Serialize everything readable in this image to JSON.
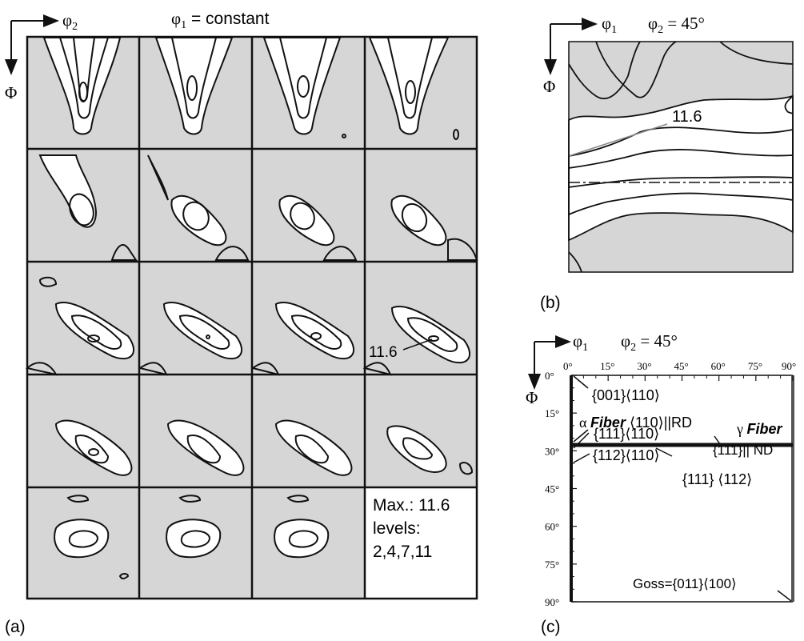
{
  "panel_a": {
    "label": "(a)",
    "axis_phi2": "φ",
    "axis_phi2_sub": "2",
    "axis_Phi": "Φ",
    "title_phi1": "φ",
    "title_phi1_sub": "1",
    "title_rest": " = constant",
    "peak_label": "11.6",
    "legend_max": "Max.: 11.6",
    "legend_levels": "levels:",
    "legend_values": "2,4,7,11"
  },
  "panel_b": {
    "label": "(b)",
    "axis_phi1": "φ",
    "axis_phi1_sub": "1",
    "axis_Phi": "Φ",
    "title_phi2": "φ",
    "title_phi2_sub": "2",
    "title_rest": " = 45°",
    "peak_label": "11.6"
  },
  "panel_c": {
    "label": "(c)",
    "axis_phi1": "φ",
    "axis_phi1_sub": "1",
    "axis_Phi": "Φ",
    "title_phi2": "φ",
    "title_phi2_sub": "2",
    "title_rest": " = 45°",
    "x_ticks": [
      "0°",
      "15°",
      "30°",
      "45°",
      "60°",
      "75°",
      "90°"
    ],
    "y_ticks": [
      "0°",
      "15°",
      "30°",
      "45°",
      "60°",
      "75°",
      "90°"
    ],
    "ann_001_110": "{001}⟨110⟩",
    "alpha_prefix": "α ",
    "alpha_bold": "Fiber",
    "alpha_suffix": " ⟨110⟩||RD",
    "ann_112_110": "{112}⟨110⟩",
    "gamma_prefix": "γ ",
    "gamma_bold": "Fiber",
    "gamma_suffix": "{111}|| ND",
    "ann_111_110": "{111}⟨110⟩",
    "ann_111_112": "{111} ⟨112⟩",
    "ann_goss": "Goss={011}⟨100⟩"
  },
  "colors": {
    "field_gray": "#d6d6d6",
    "line": "#111111",
    "background": "#ffffff"
  }
}
